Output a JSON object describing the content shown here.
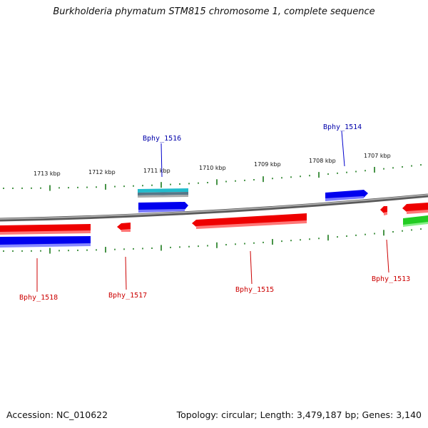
{
  "title": "Burkholderia phymatum STM815 chromosome 1, complete sequence",
  "footer": {
    "accession": "Accession: NC_010622",
    "summary": "Topology: circular; Length: 3,479,187 bp; Genes: 3,140"
  },
  "colors": {
    "forward_gene": "#0000dd",
    "reverse_gene": "#ee0000",
    "rna_gene": "#22bbcc",
    "other_gene": "#33cc33",
    "tick": "#1a7a1a",
    "backbone": "#888888",
    "forward_label": "#0000aa",
    "reverse_label": "#cc0000"
  },
  "scale_labels": [
    "1713 kbp",
    "1712 kbp",
    "1711 kbp",
    "1710 kbp",
    "1709 kbp",
    "1708 kbp",
    "1707 kbp"
  ],
  "gene_labels": {
    "bphy_1516": "Bphy_1516",
    "bphy_1514": "Bphy_1514",
    "bphy_1518": "Bphy_1518",
    "bphy_1517": "Bphy_1517",
    "bphy_1515": "Bphy_1515",
    "bphy_1513": "Bphy_1513"
  }
}
